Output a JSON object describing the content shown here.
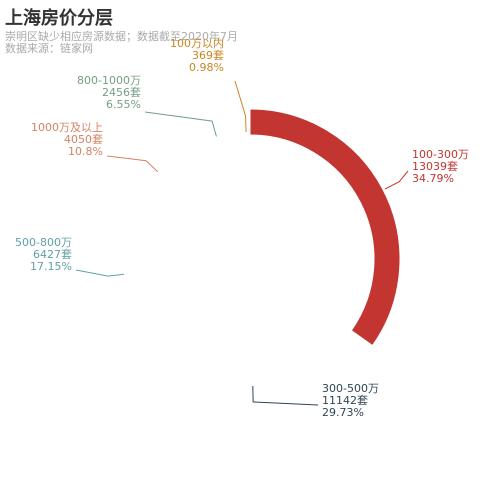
{
  "title": "上海房价分层",
  "subtitle": [
    "崇明区缺少相应房源数据；数据截至2020年7月",
    "数据来源：链家网"
  ],
  "chart_data": {
    "type": "pie",
    "title": "上海房价分层",
    "unit": "套",
    "series": [
      {
        "name": "100-300万",
        "value": 13039,
        "percent": "34.79%",
        "color": "#c23531"
      },
      {
        "name": "300-500万",
        "value": 11142,
        "percent": "29.73%",
        "color": "#2f4554"
      },
      {
        "name": "500-800万",
        "value": 6427,
        "percent": "17.15%",
        "color": "#61a0a8"
      },
      {
        "name": "1000万及以上",
        "value": 4050,
        "percent": "10.8%",
        "color": "#d48265"
      },
      {
        "name": "800-1000万",
        "value": 2456,
        "percent": "6.55%",
        "color": "#749f83"
      },
      {
        "name": "100万以内",
        "value": 369,
        "percent": "0.98%",
        "color": "#ca8622"
      }
    ]
  }
}
